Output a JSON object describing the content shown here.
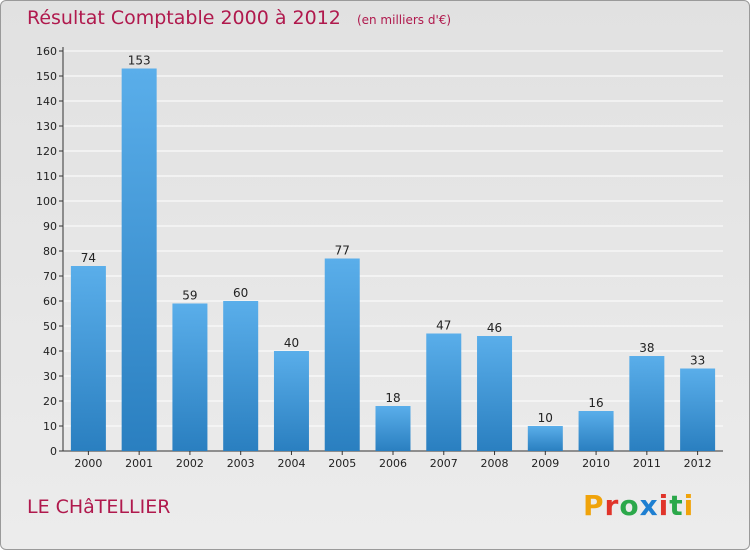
{
  "header": {
    "title": "Résultat Comptable 2000 à 2012",
    "unit": "(en milliers d'€)"
  },
  "footer": {
    "place": "LE CHâTELLIER",
    "logo_text": "Proxiti",
    "logo_colors": [
      "#f0a30a",
      "#e0342a",
      "#2ba84a",
      "#1e7fd1",
      "#e0342a",
      "#2ba84a",
      "#f0a30a"
    ]
  },
  "colors": {
    "title": "#b0194d",
    "bar_light": "#5aaeea",
    "bar_dark": "#2a7fc0"
  },
  "chart_data": {
    "type": "bar",
    "title": "Résultat Comptable 2000 à 2012",
    "xlabel": "",
    "ylabel": "",
    "categories": [
      "2000",
      "2001",
      "2002",
      "2003",
      "2004",
      "2005",
      "2006",
      "2007",
      "2008",
      "2009",
      "2010",
      "2011",
      "2012"
    ],
    "values": [
      74,
      153,
      59,
      60,
      40,
      77,
      18,
      47,
      46,
      10,
      16,
      38,
      33
    ],
    "ylim": [
      0,
      160
    ],
    "yticks": [
      0,
      10,
      20,
      30,
      40,
      50,
      60,
      70,
      80,
      90,
      100,
      110,
      120,
      130,
      140,
      150,
      160
    ],
    "grid": true,
    "legend": "none"
  }
}
